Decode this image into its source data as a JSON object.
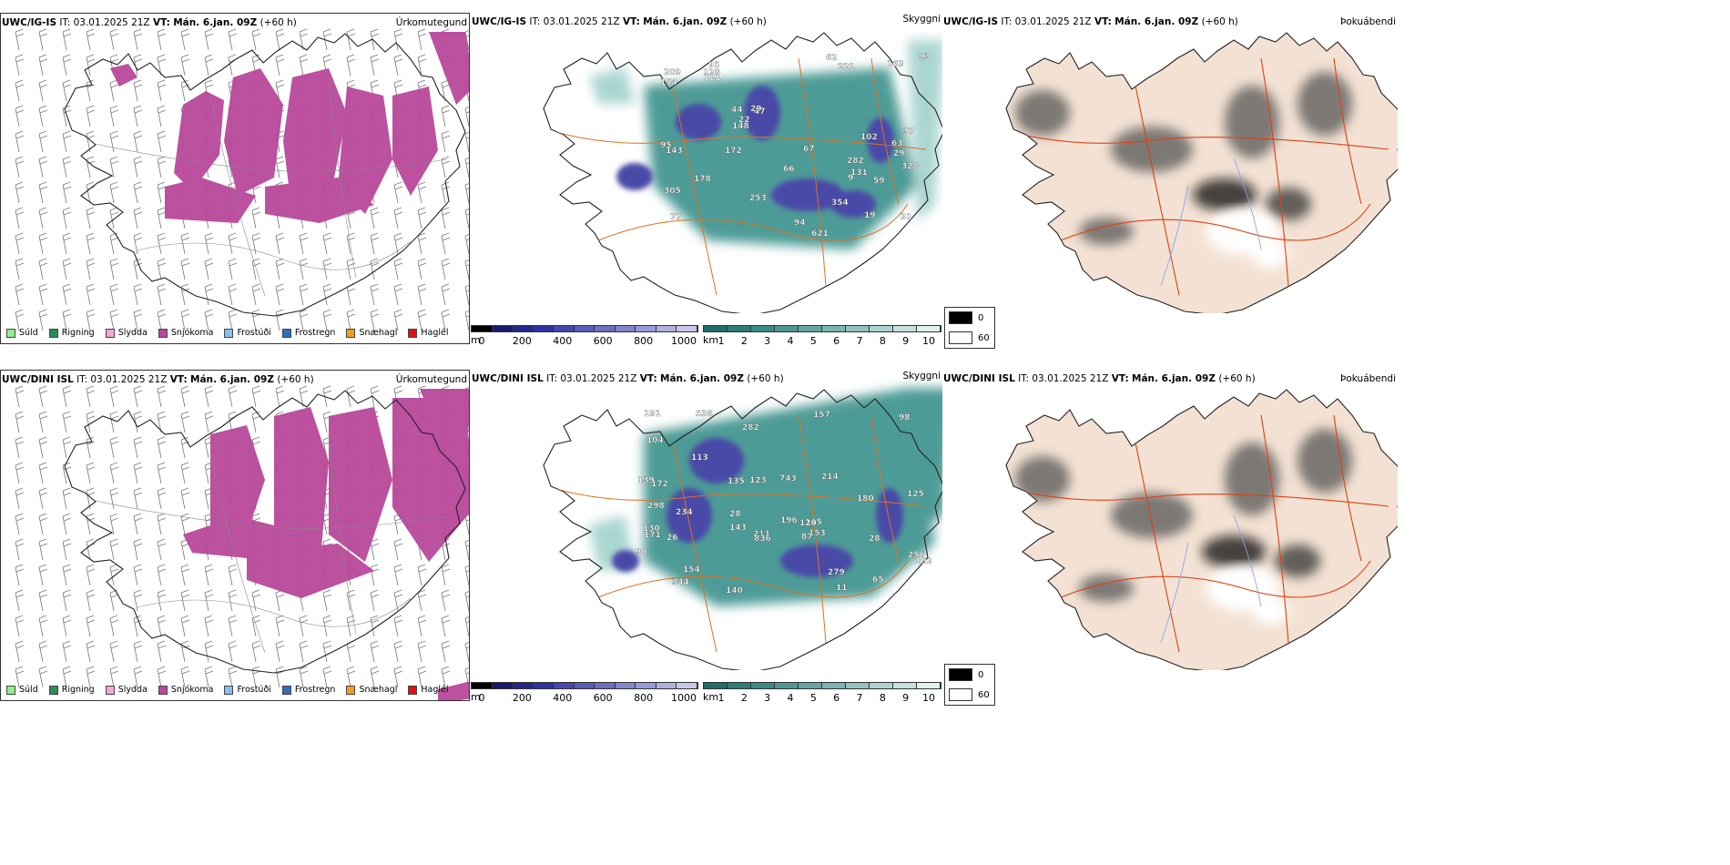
{
  "colors": {
    "snow": "#b8489a",
    "snow_light": "#e7a7d4",
    "cloud": "#2f8a84",
    "cloud_light": "#9ccfca",
    "cloud_deep": "#4a4aa8",
    "road": "#e07020",
    "land_beige": "#f3e2d4",
    "terrain_dark": "#555555",
    "river": "#8ca4f0"
  },
  "rows": [
    {
      "model": "UWC/IG-IS",
      "it_label": "IT:",
      "it_value": "03.01.2025 21Z",
      "vt_label": "VT:",
      "vt_value": "Mán. 6.jan. 09Z",
      "lead": "(+60 h)",
      "cloudbase_labels": [
        "282",
        "29",
        "77",
        "95",
        "47",
        "19",
        "305",
        "221",
        "44",
        "621",
        "154",
        "95",
        "209",
        "31",
        "253",
        "37",
        "66",
        "67",
        "29",
        "178",
        "93",
        "163",
        "148",
        "328",
        "62",
        "128",
        "131",
        "143",
        "121",
        "102",
        "94",
        "354",
        "22",
        "172",
        "63",
        "59",
        "9"
      ]
    },
    {
      "model": "UWC/DINI ISL",
      "it_label": "IT:",
      "it_value": "03.01.2025 21Z",
      "vt_label": "VT:",
      "vt_value": "Mán. 6.jan. 09Z",
      "lead": "(+60 h)",
      "cloudbase_labels": [
        "153",
        "172",
        "98",
        "87",
        "28",
        "123",
        "180",
        "145",
        "135",
        "743",
        "154",
        "139",
        "26",
        "211",
        "28",
        "256",
        "214",
        "171",
        "140",
        "113",
        "130",
        "120",
        "836",
        "344",
        "191",
        "157",
        "279",
        "298",
        "234",
        "102",
        "125",
        "143",
        "282",
        "104",
        "196",
        "538",
        "11",
        "90",
        "65"
      ]
    }
  ],
  "panel_types": {
    "precip": "Úrkomutegund",
    "visibility": "Skyggni",
    "fog": "Þokuábendi"
  },
  "precip_legend": [
    {
      "label": "Súld",
      "color": "#90ee90"
    },
    {
      "label": "Rigning",
      "color": "#2e8b57"
    },
    {
      "label": "Slydda",
      "color": "#f4a6d7"
    },
    {
      "label": "Snjókoma",
      "color": "#b8489a"
    },
    {
      "label": "Frostúði",
      "color": "#87bff0"
    },
    {
      "label": "Frostregn",
      "color": "#2e6fbf"
    },
    {
      "label": "Snæhagl",
      "color": "#f0a020"
    },
    {
      "label": "Haglél",
      "color": "#e01010"
    }
  ],
  "cloudbase_bar": {
    "unit": "m",
    "ticks": [
      "0",
      "200",
      "400",
      "600",
      "800",
      "1000"
    ],
    "colors": [
      "#000000",
      "#1a1a6e",
      "#26268a",
      "#3030a0",
      "#4646ae",
      "#5a5ab8",
      "#6e6ec2",
      "#8484cc",
      "#9a9ad6",
      "#b0b0e0",
      "#c8c8ea"
    ]
  },
  "visibility_bar": {
    "unit": "km",
    "ticks": [
      "1",
      "2",
      "3",
      "4",
      "5",
      "6",
      "7",
      "8",
      "9",
      "10"
    ],
    "colors": [
      "#1f6e6a",
      "#2b7d78",
      "#3a8a85",
      "#4f9892",
      "#66a7a1",
      "#7db5b0",
      "#95c3bf",
      "#aed2ce",
      "#c7e1de",
      "#e0f0ee"
    ]
  },
  "fog_legend": [
    {
      "value": "0",
      "color": "#000000"
    },
    {
      "value": "60",
      "color": "#ffffff"
    }
  ]
}
